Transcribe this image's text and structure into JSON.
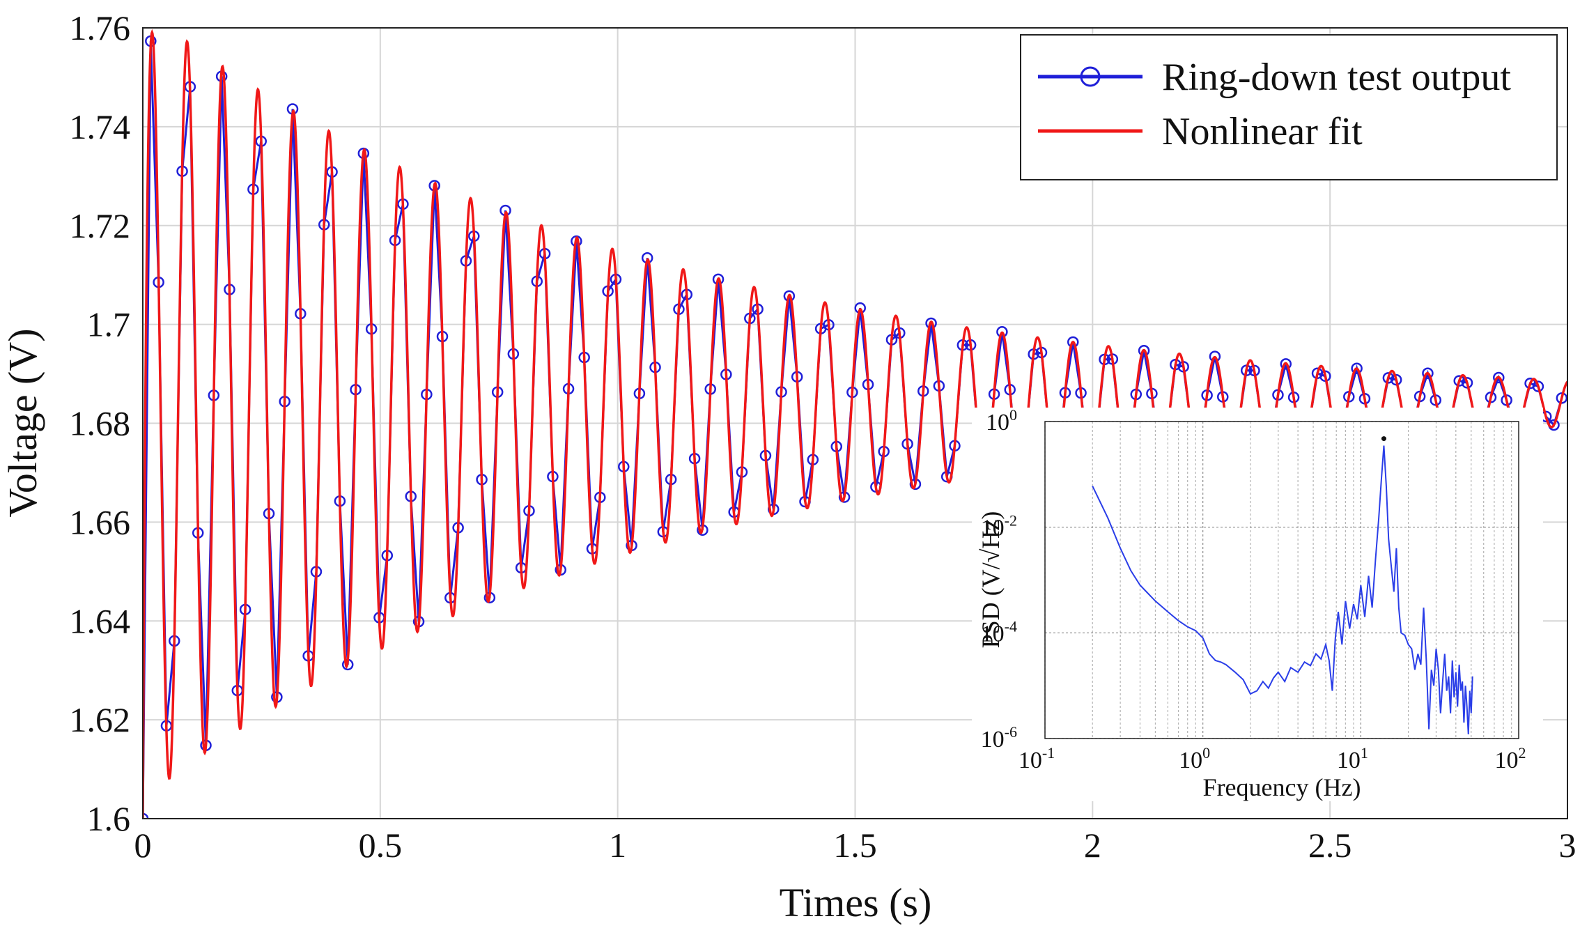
{
  "chart_data": [
    {
      "type": "line",
      "xlabel": "Times (s)",
      "ylabel": "Voltage (V)",
      "xlim": [
        0,
        3
      ],
      "ylim": [
        1.6,
        1.76
      ],
      "x_ticks": [
        "0",
        "0.5",
        "1",
        "1.5",
        "2",
        "2.5",
        "3"
      ],
      "y_ticks": [
        "1.6",
        "1.62",
        "1.64",
        "1.66",
        "1.68",
        "1.7",
        "1.72",
        "1.74",
        "1.76"
      ],
      "grid": true,
      "legend_position": "top-right",
      "model": {
        "offset": 1.684,
        "initial_amplitude": 0.08,
        "decay_rate": 0.95,
        "frequency_hz": 13.4,
        "start_voltage": 1.6
      },
      "series": [
        {
          "name": "Ring-down test output",
          "color": "#1f1fd8",
          "marker": "circle",
          "sample_interval_s": 0.0166
        },
        {
          "name": "Nonlinear fit",
          "color": "#f01818",
          "marker": "none"
        }
      ]
    },
    {
      "type": "line",
      "inset": true,
      "position": "lower-right",
      "xlabel": "Frequency (Hz)",
      "ylabel": "PSD (V/√Hz)",
      "x_scale": "log",
      "y_scale": "log",
      "xlim": [
        0.1,
        100
      ],
      "ylim": [
        1e-06,
        1
      ],
      "x_ticks": [
        {
          "base": "10",
          "exp": "-1"
        },
        {
          "base": "10",
          "exp": "0"
        },
        {
          "base": "10",
          "exp": "1"
        },
        {
          "base": "10",
          "exp": "2"
        }
      ],
      "y_ticks": [
        {
          "base": "10",
          "exp": "-6"
        },
        {
          "base": "10",
          "exp": "-4"
        },
        {
          "base": "10",
          "exp": "-2"
        },
        {
          "base": "10",
          "exp": "0"
        }
      ],
      "grid": true,
      "series": [
        {
          "color": "#2a3ee8",
          "peak": {
            "frequency": 14,
            "psd": 0.35
          },
          "points": [
            [
              0.2,
              0.06
            ],
            [
              0.25,
              0.015
            ],
            [
              0.3,
              0.004
            ],
            [
              0.35,
              0.0015
            ],
            [
              0.4,
              0.0008
            ],
            [
              0.5,
              0.0004
            ],
            [
              0.6,
              0.00025
            ],
            [
              0.7,
              0.00017
            ],
            [
              0.8,
              0.00013
            ],
            [
              0.9,
              0.00011
            ],
            [
              1.0,
              8e-05
            ],
            [
              1.1,
              4e-05
            ],
            [
              1.2,
              3e-05
            ],
            [
              1.3,
              2.8e-05
            ],
            [
              1.4,
              2.5e-05
            ],
            [
              1.6,
              1.8e-05
            ],
            [
              1.8,
              1.3e-05
            ],
            [
              2.0,
              7e-06
            ],
            [
              2.2,
              8e-06
            ],
            [
              2.4,
              1.2e-05
            ],
            [
              2.6,
              9e-06
            ],
            [
              2.8,
              1.4e-05
            ],
            [
              3.0,
              1.8e-05
            ],
            [
              3.3,
              1.2e-05
            ],
            [
              3.6,
              2.2e-05
            ],
            [
              4.0,
              1.8e-05
            ],
            [
              4.4,
              2.8e-05
            ],
            [
              4.8,
              2.4e-05
            ],
            [
              5.2,
              4e-05
            ],
            [
              5.6,
              3.2e-05
            ],
            [
              6.0,
              6e-05
            ],
            [
              6.3,
              3e-05
            ],
            [
              6.6,
              8e-06
            ],
            [
              6.9,
              8e-05
            ],
            [
              7.2,
              0.00025
            ],
            [
              7.6,
              6e-05
            ],
            [
              8.0,
              0.0004
            ],
            [
              8.5,
              0.00012
            ],
            [
              9.0,
              0.00035
            ],
            [
              9.5,
              0.00018
            ],
            [
              10,
              0.0008
            ],
            [
              10.6,
              0.0002
            ],
            [
              11.2,
              0.0012
            ],
            [
              11.8,
              0.0003
            ],
            [
              12.4,
              0.0025
            ],
            [
              13.0,
              0.015
            ],
            [
              13.5,
              0.08
            ],
            [
              14.0,
              0.35
            ],
            [
              14.5,
              0.06
            ],
            [
              15.0,
              0.006
            ],
            [
              15.6,
              0.0018
            ],
            [
              16.2,
              0.0006
            ],
            [
              16.8,
              0.004
            ],
            [
              17.4,
              0.0003
            ],
            [
              18.0,
              0.0001
            ],
            [
              19,
              9e-05
            ],
            [
              20,
              6e-05
            ],
            [
              21,
              5e-05
            ],
            [
              22,
              2e-05
            ],
            [
              23,
              4e-05
            ],
            [
              24,
              2.5e-05
            ],
            [
              25,
              0.0003
            ],
            [
              26,
              3e-05
            ],
            [
              27,
              1.5e-06
            ],
            [
              28,
              2e-05
            ],
            [
              29,
              1e-05
            ],
            [
              30,
              5e-05
            ],
            [
              31,
              2e-05
            ],
            [
              32,
              3e-06
            ],
            [
              33,
              1.2e-05
            ],
            [
              34,
              4e-05
            ],
            [
              35,
              8e-06
            ],
            [
              36,
              1.5e-05
            ],
            [
              37,
              3e-06
            ],
            [
              38,
              3e-05
            ],
            [
              39,
              6e-06
            ],
            [
              40,
              1.8e-05
            ],
            [
              41,
              4e-06
            ],
            [
              42,
              2.5e-05
            ],
            [
              43,
              8e-06
            ],
            [
              44,
              1.2e-05
            ],
            [
              45,
              2e-06
            ],
            [
              46,
              1e-05
            ],
            [
              47,
              4e-06
            ],
            [
              48,
              1.2e-06
            ],
            [
              49,
              8e-06
            ],
            [
              50,
              3e-06
            ],
            [
              51,
              1.5e-05
            ]
          ]
        }
      ]
    }
  ]
}
